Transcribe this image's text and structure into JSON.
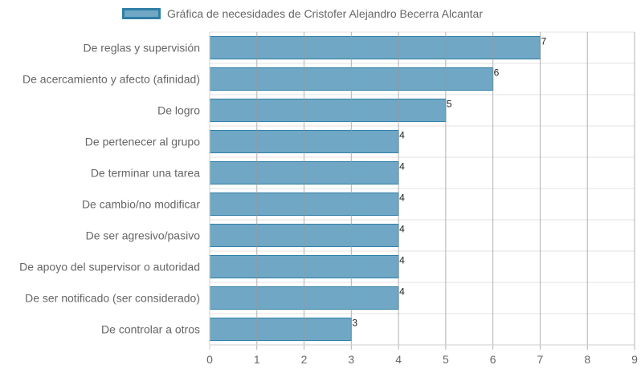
{
  "chart_data": {
    "type": "bar",
    "orientation": "horizontal",
    "categories": [
      "De reglas y supervisión",
      "De acercamiento y afecto (afinidad)",
      "De logro",
      "De pertenecer al grupo",
      "De terminar una tarea",
      "De cambio/no modificar",
      "De ser agresivo/pasivo",
      "De apoyo del supervisor o autoridad",
      "De ser notificado (ser considerado)",
      "De controlar a otros"
    ],
    "series": [
      {
        "name": "Gráfica de necesidades de Cristofer Alejandro Becerra Alcantar",
        "values": [
          7,
          6,
          5,
          4,
          4,
          4,
          4,
          4,
          4,
          3
        ]
      }
    ],
    "xlim": [
      0,
      9
    ],
    "x_ticks": [
      "0",
      "1",
      "2",
      "3",
      "4",
      "5",
      "6",
      "7",
      "8",
      "9"
    ],
    "grid": true,
    "legend_position": "top",
    "data_labels": true,
    "colors": {
      "bar_fill": "#6fa7c5",
      "bar_border": "#2f7fa5",
      "grid": "#e3e3e3",
      "grid_major": "#999999"
    }
  }
}
